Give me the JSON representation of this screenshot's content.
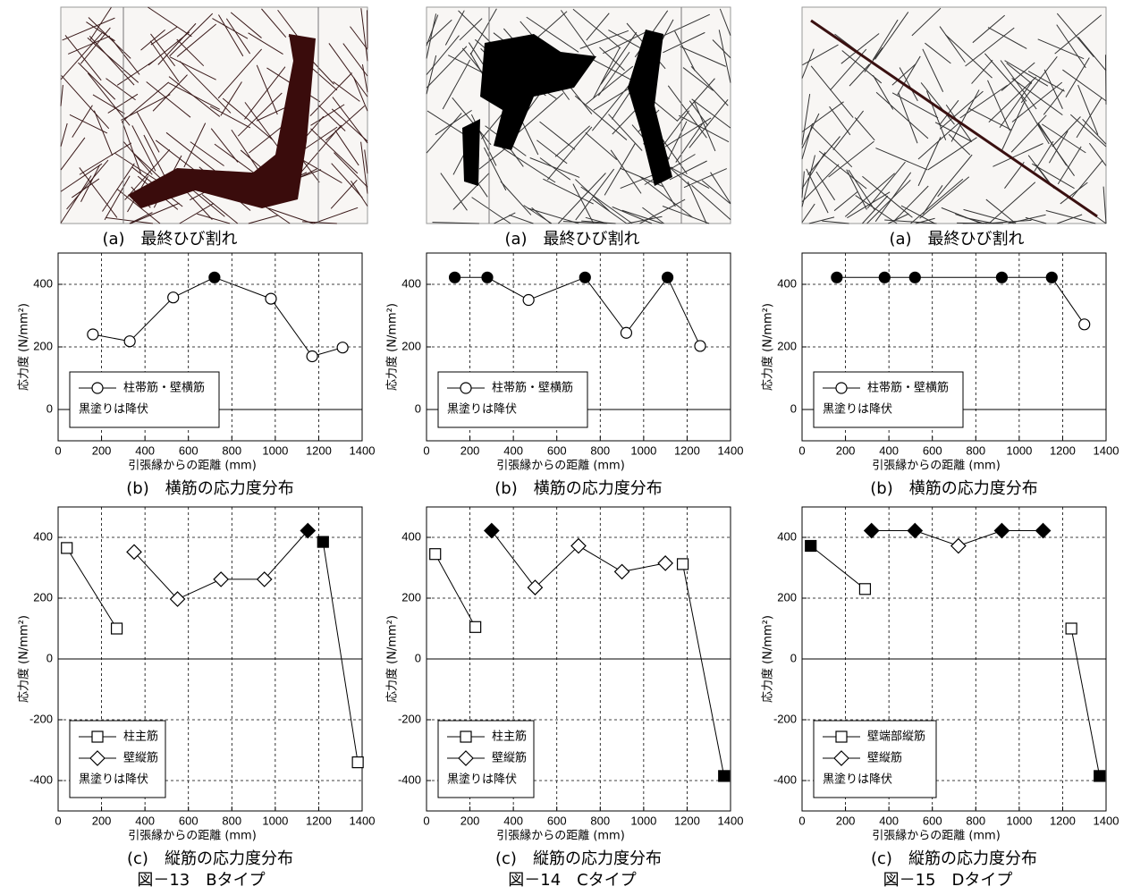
{
  "figures": [
    {
      "crack_caption": "(a)　最終ひび割れ",
      "title": "図－13　Bタイプ"
    },
    {
      "crack_caption": "(a)　最終ひび割れ",
      "title": "図－14　Cタイプ"
    },
    {
      "crack_caption": "(a)　最終ひび割れ",
      "title": "図－15　Dタイプ"
    }
  ],
  "chart_data": [
    {
      "type": "line",
      "title": "(b)　横筋の応力度分布",
      "xlabel": "引張縁からの距離 (mm)",
      "ylabel": "応力度 (N/mm²)",
      "xlim": [
        0,
        1400
      ],
      "xticks": [
        0,
        200,
        400,
        600,
        800,
        1000,
        1200,
        1400
      ],
      "ylim": [
        -100,
        500
      ],
      "yticks": [
        0,
        200,
        400
      ],
      "grid": true,
      "legend_note": "黒塗りは降伏",
      "series": [
        {
          "name": "柱帯筋・壁横筋",
          "marker": "circle",
          "color": "#000000",
          "x": [
            160,
            330,
            530,
            720,
            980,
            1170,
            1310
          ],
          "values": [
            240,
            218,
            358,
            422,
            354,
            170,
            198
          ],
          "filled": [
            false,
            false,
            false,
            true,
            false,
            false,
            false
          ]
        }
      ]
    },
    {
      "type": "line",
      "title": "(c)　縦筋の応力度分布",
      "xlabel": "引張縁からの距離 (mm)",
      "ylabel": "応力度 (N/mm²)",
      "xlim": [
        0,
        1400
      ],
      "xticks": [
        0,
        200,
        400,
        600,
        800,
        1000,
        1200,
        1400
      ],
      "ylim": [
        -500,
        500
      ],
      "yticks": [
        -400,
        -200,
        0,
        200,
        400
      ],
      "grid": true,
      "legend_note": "黒塗りは降伏",
      "series": [
        {
          "name": "柱主筋",
          "marker": "square",
          "color": "#000000",
          "x": [
            40,
            270,
            null,
            1220,
            1380
          ],
          "values": [
            365,
            100,
            null,
            385,
            -340
          ],
          "filled": [
            false,
            false,
            false,
            true,
            false
          ]
        },
        {
          "name": "壁縦筋",
          "marker": "diamond",
          "color": "#000000",
          "x": [
            350,
            550,
            750,
            950,
            1150
          ],
          "values": [
            352,
            197,
            262,
            262,
            422
          ],
          "filled": [
            false,
            false,
            false,
            false,
            true
          ]
        }
      ]
    },
    {
      "type": "line",
      "title": "(b)　横筋の応力度分布",
      "xlabel": "引張縁からの距離 (mm)",
      "ylabel": "応力度 (N/mm²)",
      "xlim": [
        0,
        1400
      ],
      "xticks": [
        0,
        200,
        400,
        600,
        800,
        1000,
        1200,
        1400
      ],
      "ylim": [
        -100,
        500
      ],
      "yticks": [
        0,
        200,
        400
      ],
      "grid": true,
      "legend_note": "黒塗りは降伏",
      "series": [
        {
          "name": "柱帯筋・壁横筋",
          "marker": "circle",
          "color": "#000000",
          "x": [
            130,
            280,
            470,
            730,
            920,
            1110,
            1260
          ],
          "values": [
            422,
            422,
            350,
            422,
            245,
            422,
            203
          ],
          "filled": [
            true,
            true,
            false,
            true,
            false,
            true,
            false
          ]
        }
      ]
    },
    {
      "type": "line",
      "title": "(c)　縦筋の応力度分布",
      "xlabel": "引張縁からの距離 (mm)",
      "ylabel": "応力度 (N/mm²)",
      "xlim": [
        0,
        1400
      ],
      "xticks": [
        0,
        200,
        400,
        600,
        800,
        1000,
        1200,
        1400
      ],
      "ylim": [
        -500,
        500
      ],
      "yticks": [
        -400,
        -200,
        0,
        200,
        400
      ],
      "grid": true,
      "legend_note": "黒塗りは降伏",
      "series": [
        {
          "name": "柱主筋",
          "marker": "square",
          "color": "#000000",
          "x": [
            40,
            225,
            null,
            1180,
            1370
          ],
          "values": [
            345,
            105,
            null,
            312,
            -385
          ],
          "filled": [
            false,
            false,
            false,
            false,
            true
          ]
        },
        {
          "name": "壁縦筋",
          "marker": "diamond",
          "color": "#000000",
          "x": [
            300,
            500,
            700,
            900,
            1100
          ],
          "values": [
            422,
            235,
            372,
            287,
            315
          ],
          "filled": [
            true,
            false,
            false,
            false,
            false
          ]
        }
      ]
    },
    {
      "type": "line",
      "title": "(b)　横筋の応力度分布",
      "xlabel": "引張縁からの距離 (mm)",
      "ylabel": "応力度 (N/mm²)",
      "xlim": [
        0,
        1400
      ],
      "xticks": [
        0,
        200,
        400,
        600,
        800,
        1000,
        1200,
        1400
      ],
      "ylim": [
        -100,
        500
      ],
      "yticks": [
        0,
        200,
        400
      ],
      "grid": true,
      "legend_note": "黒塗りは降伏",
      "series": [
        {
          "name": "柱帯筋・壁横筋",
          "marker": "circle",
          "color": "#000000",
          "x": [
            160,
            380,
            520,
            920,
            1150,
            1300
          ],
          "values": [
            422,
            422,
            422,
            422,
            422,
            272
          ],
          "filled": [
            true,
            true,
            true,
            true,
            true,
            false
          ]
        }
      ]
    },
    {
      "type": "line",
      "title": "(c)　縦筋の応力度分布",
      "xlabel": "引張縁からの距離 (mm)",
      "ylabel": "応力度 (N/mm²)",
      "xlim": [
        0,
        1400
      ],
      "xticks": [
        0,
        200,
        400,
        600,
        800,
        1000,
        1200,
        1400
      ],
      "ylim": [
        -500,
        500
      ],
      "yticks": [
        -400,
        -200,
        0,
        200,
        400
      ],
      "grid": true,
      "legend_note": "黒塗りは降伏",
      "series": [
        {
          "name": "壁端部縦筋",
          "marker": "square",
          "color": "#000000",
          "x": [
            40,
            290,
            null,
            1240,
            1370
          ],
          "values": [
            372,
            230,
            null,
            100,
            -385
          ],
          "filled": [
            true,
            false,
            false,
            false,
            true
          ]
        },
        {
          "name": "壁縦筋",
          "marker": "diamond",
          "color": "#000000",
          "x": [
            320,
            520,
            720,
            920,
            1110
          ],
          "values": [
            422,
            422,
            372,
            422,
            422
          ],
          "filled": [
            true,
            true,
            false,
            true,
            true
          ]
        }
      ]
    }
  ]
}
